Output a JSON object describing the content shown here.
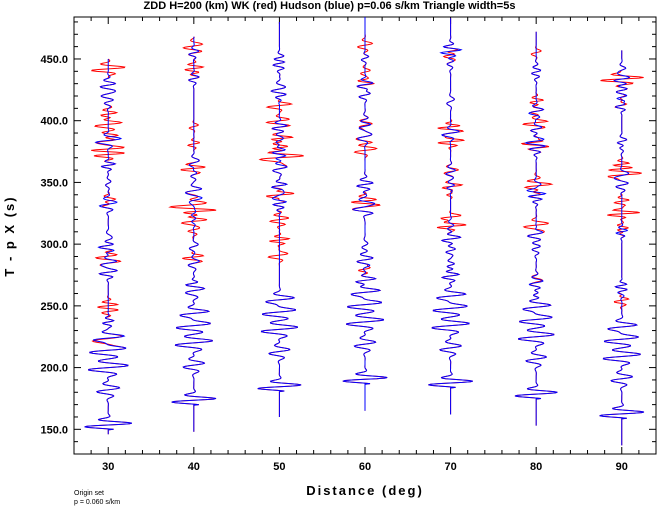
{
  "chart_data": {
    "type": "line",
    "title": "ZDD H=200 (km) WK (red) Hudson (blue) p=0.06 s/km Triangle width=5s",
    "xlabel": "Distance (deg)",
    "ylabel": "T - p X (s)",
    "xlim": [
      26,
      94
    ],
    "ylim": [
      130,
      484
    ],
    "x_ticks": [
      30,
      40,
      50,
      60,
      70,
      80,
      90
    ],
    "x_tick_labels": [
      "30",
      "40",
      "50",
      "60",
      "70",
      "80",
      "90"
    ],
    "y_ticks": [
      150,
      200,
      250,
      300,
      350,
      400,
      450
    ],
    "y_tick_labels": [
      "150.0",
      "200.0",
      "250.0",
      "300.0",
      "350.0",
      "400.0",
      "450.0"
    ],
    "grid": false,
    "series": [
      {
        "color": "#ff0000",
        "style": "WK synthetic"
      },
      {
        "color": "#0000ff",
        "style": "Hudson synthetic"
      }
    ],
    "traces": [
      {
        "distance": 30,
        "t_start": 146,
        "t_end": 450,
        "onset": 152,
        "amp": 4.8,
        "seed": 3
      },
      {
        "distance": 40,
        "t_start": 148,
        "t_end": 468,
        "onset": 172,
        "amp": 4.5,
        "seed": 7
      },
      {
        "distance": 50,
        "t_start": 160,
        "t_end": 480,
        "onset": 183,
        "amp": 4.4,
        "seed": 11
      },
      {
        "distance": 60,
        "t_start": 165,
        "t_end": 484,
        "onset": 189,
        "amp": 4.5,
        "seed": 13
      },
      {
        "distance": 70,
        "t_start": 162,
        "t_end": 483,
        "onset": 186,
        "amp": 4.5,
        "seed": 17
      },
      {
        "distance": 80,
        "t_start": 153,
        "t_end": 472,
        "onset": 177,
        "amp": 4.3,
        "seed": 19
      },
      {
        "distance": 90,
        "t_start": 137,
        "t_end": 457,
        "onset": 161,
        "amp": 4.5,
        "seed": 23
      }
    ]
  },
  "footer": {
    "line1": "Origin set",
    "line2": "p = 0.060 s/km"
  }
}
